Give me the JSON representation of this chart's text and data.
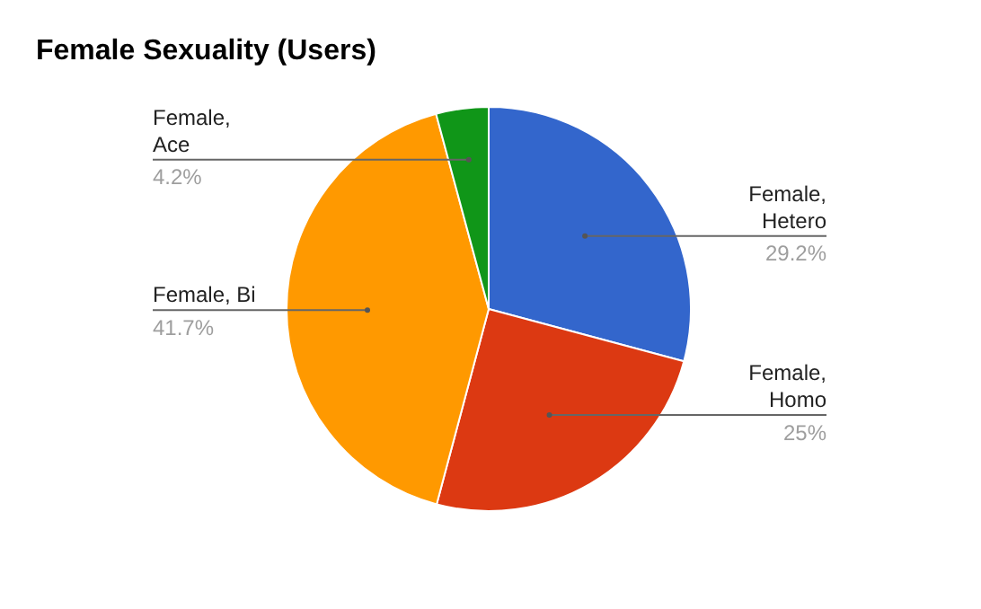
{
  "chart_data": {
    "type": "pie",
    "title": "Female Sexuality (Users)",
    "categories": [
      "Female, Hetero",
      "Female, Homo",
      "Female, Bi",
      "Female, Ace"
    ],
    "values": [
      29.2,
      25,
      41.7,
      4.2
    ],
    "value_labels": [
      "29.2%",
      "25%",
      "41.7%",
      "4.2%"
    ],
    "colors": [
      "#3366cc",
      "#dc3912",
      "#ff9900",
      "#109618"
    ],
    "legend": false
  }
}
